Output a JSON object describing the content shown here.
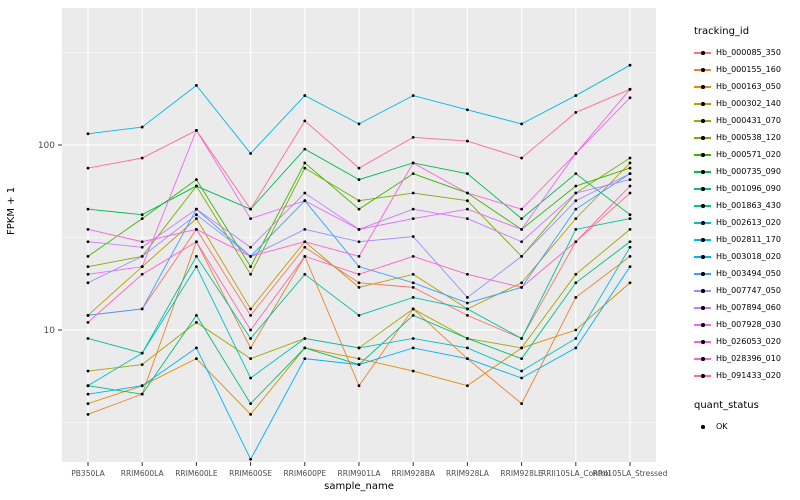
{
  "chart_data": {
    "type": "line",
    "title": "",
    "xlabel": "sample_name",
    "ylabel": "FPKM + 1",
    "yscale": "log10",
    "yticks": [
      10,
      100
    ],
    "ylim": [
      2,
      500
    ],
    "grid": "on",
    "legend_position": "right",
    "panel_color": "#EBEBEB",
    "grid_color": "#FFFFFF",
    "point_color": "#000000",
    "tick_label_color": "#4D4D4D",
    "categories": [
      "PB350LA",
      "RRIM600LA",
      "RRIM600LE",
      "RRIM600SE",
      "RRIM600PE",
      "RRIM901LA",
      "RRIM928BA",
      "RRIM928LA",
      "RRIM928LE",
      "RRII105LA_Control",
      "RRII105LA_Stressed"
    ],
    "series": [
      {
        "name": "Hb_000085_350",
        "color": "#F8766D",
        "values": [
          12,
          13,
          35,
          12,
          28,
          18,
          17,
          12,
          9,
          30,
          55
        ]
      },
      {
        "name": "Hb_000155_160",
        "color": "#EA8331",
        "values": [
          3.5,
          4.5,
          30,
          8,
          25,
          5,
          13,
          7,
          4,
          15,
          25
        ]
      },
      {
        "name": "Hb_000163_050",
        "color": "#D89000",
        "values": [
          4,
          5,
          7,
          3.5,
          8,
          7,
          6,
          5,
          8,
          10,
          18
        ]
      },
      {
        "name": "Hb_000302_140",
        "color": "#C09B00",
        "values": [
          12,
          22,
          40,
          13,
          30,
          17,
          20,
          13,
          18,
          40,
          80
        ]
      },
      {
        "name": "Hb_000431_070",
        "color": "#A3A500",
        "values": [
          6,
          6.5,
          11,
          7,
          9,
          8,
          13,
          9,
          8,
          20,
          35
        ]
      },
      {
        "name": "Hb_000538_120",
        "color": "#7CAE00",
        "values": [
          22,
          25,
          60,
          20,
          75,
          50,
          55,
          50,
          25,
          55,
          85
        ]
      },
      {
        "name": "Hb_000571_020",
        "color": "#39B600",
        "values": [
          25,
          40,
          65,
          22,
          80,
          45,
          70,
          55,
          35,
          60,
          75
        ]
      },
      {
        "name": "Hb_000735_090",
        "color": "#00BB4E",
        "values": [
          45,
          42,
          60,
          45,
          95,
          65,
          80,
          70,
          40,
          70,
          42
        ]
      },
      {
        "name": "Hb_001096_090",
        "color": "#00BF7D",
        "values": [
          5,
          4.5,
          12,
          4,
          8,
          6.5,
          12,
          9,
          7,
          18,
          30
        ]
      },
      {
        "name": "Hb_001863_430",
        "color": "#00C1A3",
        "values": [
          9,
          7.5,
          25,
          9,
          20,
          12,
          15,
          13,
          9,
          35,
          40
        ]
      },
      {
        "name": "Hb_002613_020",
        "color": "#00BFC4",
        "values": [
          5,
          7.5,
          22,
          5.5,
          9,
          8,
          9,
          8,
          6,
          9,
          28
        ]
      },
      {
        "name": "Hb_002811_170",
        "color": "#00BAE0",
        "values": [
          115,
          125,
          210,
          90,
          185,
          130,
          185,
          155,
          130,
          185,
          270
        ]
      },
      {
        "name": "Hb_003018_020",
        "color": "#00B0F6",
        "values": [
          4.5,
          5,
          8,
          2,
          7,
          6.5,
          8,
          7,
          5.5,
          8,
          22
        ]
      },
      {
        "name": "Hb_003494_050",
        "color": "#35A2FF",
        "values": [
          12,
          13,
          45,
          25,
          50,
          22,
          18,
          14,
          17,
          45,
          70
        ]
      },
      {
        "name": "Hb_007747_050",
        "color": "#9590FF",
        "values": [
          18,
          25,
          42,
          25,
          35,
          30,
          32,
          15,
          25,
          50,
          70
        ]
      },
      {
        "name": "Hb_007894_060",
        "color": "#C77CFF",
        "values": [
          30,
          28,
          45,
          28,
          55,
          35,
          45,
          40,
          30,
          55,
          65
        ]
      },
      {
        "name": "Hb_007928_030",
        "color": "#E76BF3",
        "values": [
          20,
          22,
          120,
          40,
          50,
          35,
          40,
          45,
          35,
          90,
          180
        ]
      },
      {
        "name": "Hb_026053_020",
        "color": "#FA62DB",
        "values": [
          35,
          30,
          35,
          25,
          30,
          25,
          80,
          55,
          45,
          90,
          200
        ]
      },
      {
        "name": "Hb_028396_010",
        "color": "#FF62BC",
        "values": [
          11,
          20,
          30,
          10,
          25,
          20,
          25,
          20,
          17,
          30,
          60
        ]
      },
      {
        "name": "Hb_091433_020",
        "color": "#FF6A98",
        "values": [
          75,
          85,
          120,
          45,
          135,
          75,
          110,
          105,
          85,
          150,
          200
        ]
      }
    ]
  },
  "legend": {
    "tracking_title": "tracking_id",
    "quant_title": "quant_status",
    "quant_items": [
      {
        "label": "OK"
      }
    ]
  }
}
